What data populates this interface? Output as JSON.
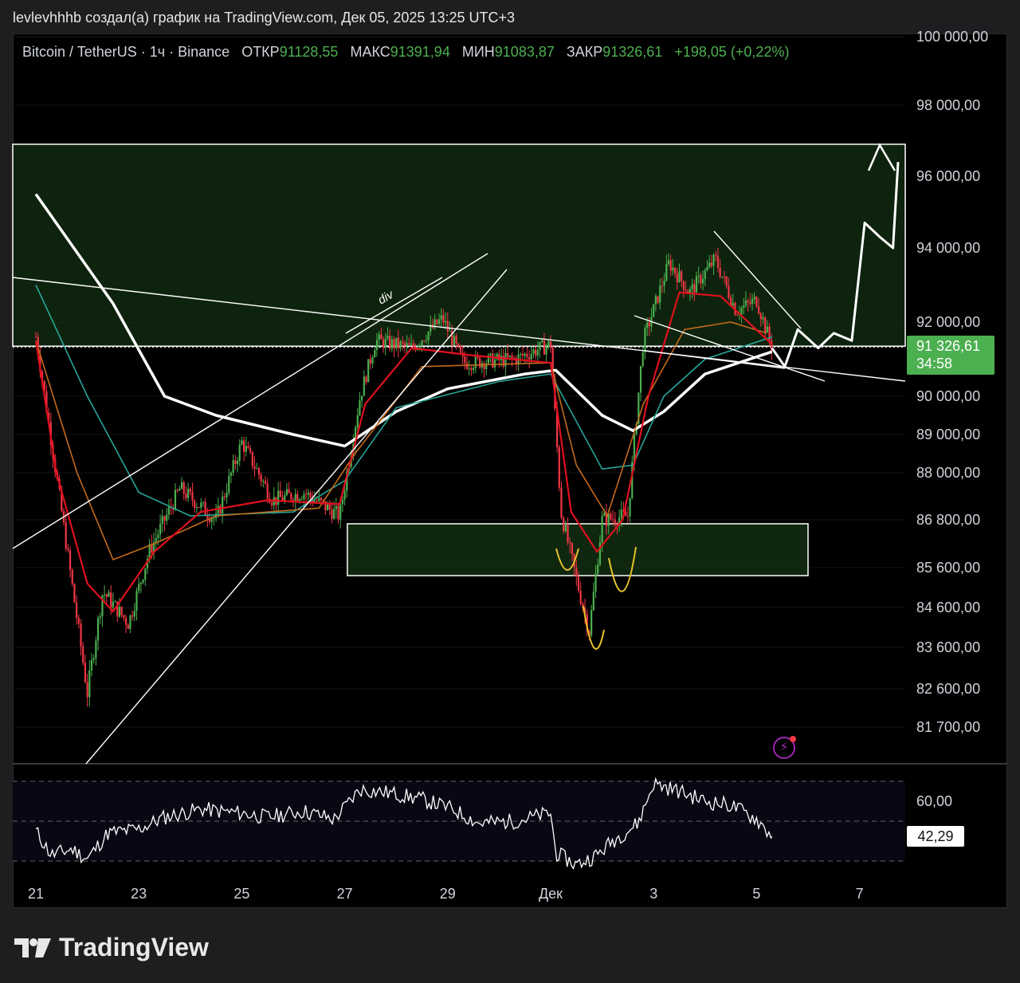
{
  "header": {
    "text": "levlevhhhb создал(а) график на TradingView.com, Дек 05, 2025 13:25 UTC+3"
  },
  "legend": {
    "symbol": "Bitcoin / TetherUS · 1ч · Binance",
    "open_label": "ОТКР",
    "open": "91128,55",
    "high_label": "МАКС",
    "high": "91391,94",
    "low_label": "МИН",
    "low": "91083,87",
    "close_label": "ЗАКР",
    "close": "91326,61",
    "change": "+198,05 (+0,22%)"
  },
  "price_tag": {
    "price": "91326,61",
    "countdown": "34:58"
  },
  "rsi_tag": {
    "value": "42,29"
  },
  "logo": {
    "text": "TradingView"
  },
  "colors": {
    "up": "#4caf50",
    "down": "#f23645",
    "bg": "#000000",
    "zone": "#10290f"
  },
  "icons": [
    "bolt-icon",
    "tradingview-logo-icon"
  ],
  "chart_data": [
    {
      "type": "candlestick",
      "title": "Bitcoin / TetherUS · 1ч · Binance",
      "x_ticks": [
        "21",
        "23",
        "25",
        "27",
        "29",
        "Дек",
        "3",
        "5",
        "7"
      ],
      "y_ticks": [
        {
          "value": 100000,
          "label": "100 000,00"
        },
        {
          "value": 98000,
          "label": "98 000,00"
        },
        {
          "value": 96000,
          "label": "96 000,00"
        },
        {
          "value": 94000,
          "label": "94 000,00"
        },
        {
          "value": 92000,
          "label": "92 000,00"
        },
        {
          "value": 90000,
          "label": "90 000,00"
        },
        {
          "value": 89000,
          "label": "89 000,00"
        },
        {
          "value": 88000,
          "label": "88 000,00"
        },
        {
          "value": 86800,
          "label": "86 800,00"
        },
        {
          "value": 85600,
          "label": "85 600,00"
        },
        {
          "value": 84600,
          "label": "84 600,00"
        },
        {
          "value": 83600,
          "label": "83 600,00"
        },
        {
          "value": 82600,
          "label": "82 600,00"
        },
        {
          "value": 81700,
          "label": "81 700,00"
        }
      ],
      "last_price": 91326.61,
      "price_path": [
        [
          0,
          91600
        ],
        [
          0.5,
          87000
        ],
        [
          1.0,
          82500
        ],
        [
          1.3,
          85000
        ],
        [
          1.8,
          84200
        ],
        [
          2.2,
          86000
        ],
        [
          2.8,
          87600
        ],
        [
          3.5,
          86800
        ],
        [
          4.0,
          88800
        ],
        [
          4.6,
          87300
        ],
        [
          5.2,
          87500
        ],
        [
          5.9,
          86900
        ],
        [
          6.3,
          90000
        ],
        [
          6.6,
          91500
        ],
        [
          7.3,
          91300
        ],
        [
          7.9,
          92100
        ],
        [
          8.3,
          90900
        ],
        [
          9.3,
          91000
        ],
        [
          10.0,
          91400
        ],
        [
          10.2,
          87000
        ],
        [
          10.5,
          85300
        ],
        [
          10.75,
          84000
        ],
        [
          11.0,
          86800
        ],
        [
          11.5,
          86900
        ],
        [
          11.8,
          91500
        ],
        [
          12.3,
          93600
        ],
        [
          12.7,
          92800
        ],
        [
          13.2,
          93700
        ],
        [
          13.6,
          92300
        ],
        [
          14.0,
          92600
        ],
        [
          14.3,
          91300
        ]
      ],
      "ma_red": [
        [
          0,
          91500
        ],
        [
          0.4,
          88000
        ],
        [
          1.0,
          85200
        ],
        [
          1.5,
          84500
        ],
        [
          2.3,
          86000
        ],
        [
          3.2,
          87000
        ],
        [
          4.5,
          87300
        ],
        [
          5.9,
          87200
        ],
        [
          6.4,
          89800
        ],
        [
          7.3,
          91300
        ],
        [
          8.5,
          91100
        ],
        [
          10.0,
          90900
        ],
        [
          10.4,
          87000
        ],
        [
          10.9,
          86000
        ],
        [
          11.4,
          86800
        ],
        [
          11.9,
          90000
        ],
        [
          12.5,
          92800
        ],
        [
          13.3,
          92700
        ],
        [
          14.3,
          91400
        ]
      ],
      "ma_orange": [
        [
          0,
          91500
        ],
        [
          0.8,
          88000
        ],
        [
          1.5,
          85800
        ],
        [
          2.3,
          86200
        ],
        [
          3.5,
          86900
        ],
        [
          5.5,
          87100
        ],
        [
          6.2,
          88500
        ],
        [
          7.5,
          90800
        ],
        [
          10.0,
          90900
        ],
        [
          10.5,
          88200
        ],
        [
          11.1,
          86900
        ],
        [
          11.8,
          89800
        ],
        [
          12.6,
          91800
        ],
        [
          13.5,
          92000
        ],
        [
          14.2,
          91700
        ]
      ],
      "ma_teal": [
        [
          0,
          93000
        ],
        [
          1.0,
          90000
        ],
        [
          2.0,
          87500
        ],
        [
          3.0,
          86900
        ],
        [
          5.0,
          87000
        ],
        [
          6.0,
          87800
        ],
        [
          7.0,
          89700
        ],
        [
          9.0,
          90400
        ],
        [
          10.0,
          90600
        ],
        [
          11.0,
          88100
        ],
        [
          11.6,
          88200
        ],
        [
          12.2,
          90000
        ],
        [
          13.0,
          91000
        ],
        [
          14.3,
          91600
        ]
      ],
      "ma_white": [
        [
          0,
          95500
        ],
        [
          1.5,
          92500
        ],
        [
          2.5,
          90000
        ],
        [
          3.5,
          89500
        ],
        [
          5.0,
          89000
        ],
        [
          6.0,
          88700
        ],
        [
          7.0,
          89600
        ],
        [
          8.0,
          90200
        ],
        [
          9.5,
          90600
        ],
        [
          10.1,
          90700
        ],
        [
          11.0,
          89500
        ],
        [
          11.6,
          89100
        ],
        [
          12.2,
          89600
        ],
        [
          13.0,
          90600
        ],
        [
          14.3,
          91200
        ]
      ],
      "forecast_path": [
        [
          14.3,
          91300
        ],
        [
          14.55,
          90800
        ],
        [
          14.8,
          91800
        ],
        [
          15.2,
          91300
        ],
        [
          15.5,
          91700
        ],
        [
          15.85,
          91500
        ],
        [
          16.1,
          94700
        ],
        [
          16.4,
          94300
        ],
        [
          16.65,
          94000
        ],
        [
          16.75,
          96400
        ]
      ],
      "zones": [
        {
          "from": 91350,
          "to": 96900,
          "x_from": 0,
          "x_to": 17.3
        },
        {
          "from": 85400,
          "to": 86700,
          "x_from": 6.5,
          "x_to": 15
        }
      ]
    },
    {
      "type": "line",
      "title": "RSI",
      "y_ticks": [
        {
          "value": 60,
          "label": "60,00"
        }
      ],
      "levels": [
        70,
        50,
        30
      ],
      "last_value": 42.29,
      "values": [
        [
          0,
          45
        ],
        [
          0.3,
          33
        ],
        [
          0.7,
          36
        ],
        [
          1.0,
          31
        ],
        [
          1.4,
          44
        ],
        [
          2.0,
          46
        ],
        [
          2.5,
          52
        ],
        [
          3.2,
          56
        ],
        [
          4.0,
          54
        ],
        [
          4.5,
          52
        ],
        [
          5.2,
          55
        ],
        [
          5.8,
          51
        ],
        [
          6.3,
          66
        ],
        [
          6.9,
          64
        ],
        [
          7.5,
          61
        ],
        [
          8.1,
          56
        ],
        [
          8.6,
          49
        ],
        [
          9.3,
          50
        ],
        [
          10.0,
          54
        ],
        [
          10.1,
          34
        ],
        [
          10.5,
          28
        ],
        [
          10.9,
          33
        ],
        [
          11.2,
          40
        ],
        [
          11.7,
          49
        ],
        [
          12.0,
          69
        ],
        [
          12.5,
          65
        ],
        [
          13.0,
          60
        ],
        [
          13.5,
          58
        ],
        [
          14.0,
          51
        ],
        [
          14.3,
          42.29
        ]
      ]
    }
  ]
}
